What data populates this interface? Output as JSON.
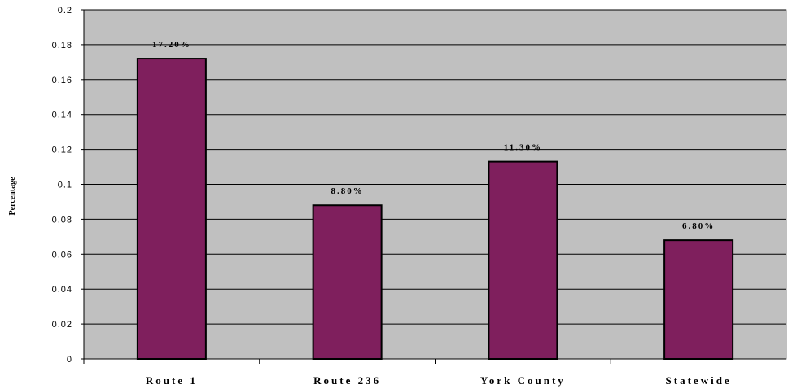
{
  "chart_data": {
    "type": "bar",
    "categories": [
      "Route 1",
      "Route 236",
      "York County",
      "Statewide"
    ],
    "values": [
      0.172,
      0.088,
      0.113,
      0.068
    ],
    "data_labels": [
      "17.20%",
      "8.80%",
      "11.30%",
      "6.80%"
    ],
    "ylabel": "Percentage",
    "ylim": [
      0,
      0.2
    ],
    "yticks": [
      0,
      0.02,
      0.04,
      0.06,
      0.08,
      0.1,
      0.12,
      0.14,
      0.16,
      0.18,
      0.2
    ],
    "ytick_labels": [
      "0",
      "0.02",
      "0.04",
      "0.06",
      "0.08",
      "0.1",
      "0.12",
      "0.14",
      "0.16",
      "0.18",
      "0.2"
    ],
    "grid": true,
    "legend": "none",
    "colors": {
      "bar_fill": "#7f1f5d",
      "bar_stroke": "#000000",
      "plot_background": "#c0c0c0",
      "gridline": "#000000"
    }
  }
}
